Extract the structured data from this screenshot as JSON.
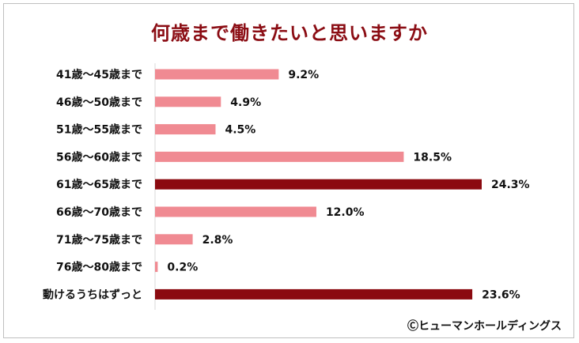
{
  "chart_data": {
    "type": "bar",
    "orientation": "horizontal",
    "title": "何歳まで働きたいと思いますか",
    "categories": [
      "41歳～45歳まで",
      "46歳～50歳まで",
      "51歳～55歳まで",
      "56歳～60歳まで",
      "61歳～65歳まで",
      "66歳～70歳まで",
      "71歳～75歳まで",
      "76歳～80歳まで",
      "動けるうちはずっと"
    ],
    "values": [
      9.2,
      4.9,
      4.5,
      18.5,
      24.3,
      12.0,
      2.8,
      0.2,
      23.6
    ],
    "value_labels": [
      "9.2%",
      "4.9%",
      "4.5%",
      "18.5%",
      "24.3%",
      "12.0%",
      "2.8%",
      "0.2%",
      "23.6%"
    ],
    "highlight": [
      false,
      false,
      false,
      false,
      true,
      false,
      false,
      false,
      true
    ],
    "colors": {
      "normal": "#f08a92",
      "highlight": "#8b0a10"
    },
    "xlim": [
      0,
      25
    ],
    "grid": false,
    "legend": "none"
  },
  "credit": "Ⓒヒューマンホールディングス"
}
